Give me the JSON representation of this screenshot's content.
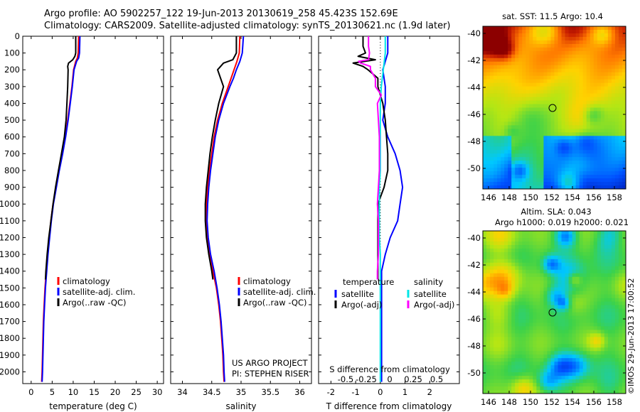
{
  "header": {
    "line1": "Argo profile: AO 5902257_122 19-Jun-2013 20130619_258 45.423S 152.69E",
    "line2": "Climatology: CARS2009. Satellite-adjusted climatology: synTS_20130621.nc (1.9d later)"
  },
  "colors": {
    "climatology": "#ff0000",
    "satellite": "#0000ff",
    "argo": "#000000",
    "salinity_satellite": "#00e6e6",
    "salinity_argo": "#ff00ff",
    "land": "#f4b89a"
  },
  "depth_ticks": [
    "0",
    "100",
    "200",
    "300",
    "400",
    "500",
    "600",
    "700",
    "800",
    "900",
    "1000",
    "1100",
    "1200",
    "1300",
    "1400",
    "1500",
    "1600",
    "1700",
    "1800",
    "1900",
    "2000"
  ],
  "chart_data": [
    {
      "type": "line",
      "id": "temperature",
      "xlabel": "temperature (deg C)",
      "ylabel": "",
      "xlim": [
        -2,
        31.5
      ],
      "ylim": [
        2070,
        0
      ],
      "xticks": [
        "0",
        "5",
        "10",
        "15",
        "20",
        "25",
        "30"
      ],
      "legend": [
        "climatology",
        "satellite-adj. clim.",
        "Argo(..raw -QC)"
      ],
      "series": [
        {
          "name": "climatology",
          "depth": [
            0,
            100,
            130,
            150,
            200,
            300,
            400,
            500,
            600,
            700,
            800,
            900,
            1000,
            1100,
            1200,
            1300,
            1400,
            1500,
            1600,
            1700,
            1800,
            1900,
            2000,
            2060
          ],
          "values": [
            11.3,
            11.2,
            11.0,
            10.6,
            10.1,
            9.7,
            9.2,
            8.7,
            8.1,
            7.4,
            6.6,
            5.9,
            5.2,
            4.7,
            4.3,
            3.9,
            3.6,
            3.3,
            3.1,
            2.9,
            2.8,
            2.7,
            2.6,
            2.5
          ]
        },
        {
          "name": "satellite-adj. clim.",
          "depth": [
            0,
            100,
            130,
            150,
            200,
            300,
            400,
            500,
            600,
            700,
            800,
            900,
            1000,
            1100,
            1200,
            1300,
            1400,
            1500,
            1600,
            1700,
            1800,
            1900,
            2000,
            2060
          ],
          "values": [
            11.6,
            11.5,
            11.3,
            10.8,
            10.2,
            9.8,
            9.3,
            8.8,
            8.2,
            7.5,
            6.7,
            6.0,
            5.3,
            4.8,
            4.4,
            4.0,
            3.7,
            3.4,
            3.2,
            3.0,
            2.9,
            2.8,
            2.7,
            2.6
          ]
        },
        {
          "name": "Argo(..raw -QC)",
          "depth": [
            0,
            60,
            100,
            120,
            140,
            160,
            180,
            200,
            300,
            400,
            500,
            600,
            700,
            800,
            900,
            1000,
            1100,
            1200,
            1300,
            1400,
            1450
          ],
          "values": [
            10.6,
            10.6,
            10.6,
            10.4,
            9.9,
            8.9,
            8.7,
            8.8,
            8.7,
            8.5,
            8.3,
            7.9,
            7.2,
            6.5,
            5.8,
            5.2,
            4.7,
            4.2,
            3.8,
            3.5,
            3.4
          ]
        }
      ]
    },
    {
      "type": "line",
      "id": "salinity",
      "xlabel": "salinity",
      "ylabel": "",
      "xlim": [
        33.8,
        36.2
      ],
      "ylim": [
        2070,
        0
      ],
      "xticks": [
        "34",
        "34.5",
        "35",
        "35.5",
        "36"
      ],
      "legend": [
        "climatology",
        "satellite-adj. clim.",
        "Argo(..raw -QC)"
      ],
      "series": [
        {
          "name": "climatology",
          "depth": [
            0,
            100,
            150,
            200,
            250,
            300,
            400,
            500,
            600,
            700,
            800,
            900,
            1000,
            1100,
            1200,
            1300,
            1400,
            1500,
            1600,
            1700,
            1800,
            1900,
            2000,
            2060
          ],
          "values": [
            34.98,
            34.97,
            34.93,
            34.88,
            34.83,
            34.78,
            34.68,
            34.6,
            34.54,
            34.5,
            34.46,
            34.43,
            34.41,
            34.4,
            34.42,
            34.46,
            34.52,
            34.58,
            34.62,
            34.65,
            34.67,
            34.69,
            34.7,
            34.71
          ]
        },
        {
          "name": "satellite-adj. clim.",
          "depth": [
            0,
            100,
            150,
            200,
            250,
            300,
            400,
            500,
            600,
            700,
            800,
            900,
            1000,
            1100,
            1200,
            1300,
            1400,
            1500,
            1600,
            1700,
            1800,
            1900,
            2000,
            2060
          ],
          "values": [
            35.04,
            35.02,
            34.98,
            34.92,
            34.87,
            34.81,
            34.7,
            34.62,
            34.56,
            34.52,
            34.48,
            34.45,
            34.43,
            34.42,
            34.44,
            34.48,
            34.54,
            34.59,
            34.63,
            34.66,
            34.68,
            34.7,
            34.71,
            34.72
          ]
        },
        {
          "name": "Argo(..raw -QC)",
          "depth": [
            0,
            60,
            100,
            140,
            160,
            200,
            300,
            400,
            500,
            600,
            700,
            800,
            900,
            1000,
            1100,
            1200,
            1300,
            1400,
            1450
          ],
          "values": [
            34.92,
            34.92,
            34.92,
            34.86,
            34.7,
            34.6,
            34.7,
            34.62,
            34.56,
            34.51,
            34.47,
            34.44,
            34.41,
            34.39,
            34.39,
            34.41,
            34.45,
            34.5,
            34.52
          ]
        }
      ],
      "annotations": [
        "US ARGO PROJECT",
        "PI: STEPHEN RISER"
      ]
    },
    {
      "type": "line",
      "id": "difference",
      "xlabel": "T difference from climatology",
      "xlabel_top": "S difference from climatology",
      "xlim": [
        -2.5,
        3.2
      ],
      "ylim": [
        2070,
        0
      ],
      "xticks": [
        "-2",
        "-1",
        "0",
        "1",
        "2"
      ],
      "xticks_top": [
        "-0.5",
        "-0.25",
        "0",
        "0.25",
        "0.5"
      ],
      "legend_temperature_title": "temperature",
      "legend_salinity_title": "salinity",
      "legend": [
        "satellite",
        "Argo(-adj)",
        "satellite",
        "Argo(-adj)"
      ],
      "series": [
        {
          "name": "satellite",
          "depth": [
            0,
            100,
            200,
            300,
            400,
            500,
            600,
            700,
            800,
            900,
            1000,
            1100,
            1200,
            1300,
            1400,
            1500,
            1600,
            1700,
            1800,
            1900,
            2000,
            2060
          ],
          "values": [
            0.3,
            0.3,
            0.1,
            0.2,
            0.2,
            0.1,
            0.3,
            0.6,
            0.8,
            0.9,
            0.8,
            0.7,
            0.4,
            0.2,
            0.05,
            0.05,
            0.05,
            0.05,
            0.05,
            0.05,
            0.05,
            0.05
          ]
        },
        {
          "name": "Argo(-adj)",
          "depth": [
            0,
            60,
            100,
            120,
            140,
            160,
            180,
            200,
            250,
            300,
            400,
            500,
            600,
            700,
            800,
            900,
            1000,
            1100,
            1200,
            1300,
            1400,
            1450
          ],
          "values": [
            -0.7,
            -0.7,
            -0.6,
            -0.9,
            -0.2,
            -1.1,
            -0.7,
            -0.5,
            -0.1,
            -0.1,
            0.1,
            0.2,
            0.25,
            0.3,
            0.3,
            0.15,
            -0.1,
            -0.1,
            -0.1,
            -0.1,
            -0.1,
            -0.1
          ]
        },
        {
          "name": "satellite",
          "depth": [
            0,
            100,
            200,
            300,
            400,
            500,
            600,
            700,
            800,
            900,
            1000,
            1100,
            1200,
            1300,
            1400,
            1500,
            1600,
            1700,
            1800,
            1900,
            2000,
            2060
          ],
          "values": [
            0.05,
            0.05,
            0.03,
            0.01,
            0,
            0,
            0,
            0,
            0,
            -0.01,
            -0.01,
            -0.01,
            -0.01,
            0,
            0,
            0,
            0,
            0,
            0,
            0,
            0,
            0
          ]
        },
        {
          "name": "Argo(-adj)",
          "depth": [
            0,
            60,
            100,
            140,
            150,
            160,
            180,
            200,
            250,
            300,
            350,
            400,
            500,
            600,
            700,
            800,
            900,
            1000,
            1100,
            1200,
            1300,
            1400,
            1450
          ],
          "values": [
            -0.12,
            -0.12,
            -0.11,
            -0.12,
            -0.22,
            -0.2,
            -0.1,
            -0.1,
            -0.05,
            -0.05,
            0.01,
            -0.03,
            -0.02,
            -0.01,
            -0.01,
            -0.01,
            -0.02,
            -0.03,
            -0.02,
            -0.02,
            -0.02,
            -0.03,
            -0.03
          ]
        }
      ]
    },
    {
      "type": "heatmap",
      "id": "sst-map",
      "title": "sat. SST: 11.5 Argo: 10.4",
      "xticks": [
        "146",
        "148",
        "150",
        "152",
        "154",
        "156",
        "158"
      ],
      "yticks": [
        "-40",
        "-42",
        "-44",
        "-46",
        "-48",
        "-50"
      ]
    },
    {
      "type": "heatmap",
      "id": "sla-map",
      "title": "Altim. SLA: 0.043",
      "subtitle": "Argo h1000: 0.019 h2000: 0.021",
      "side_label": "©IMOS 29-Jun-2013 17:00:52",
      "xticks": [
        "146",
        "148",
        "150",
        "152",
        "154",
        "156",
        "158"
      ],
      "yticks": [
        "-40",
        "-42",
        "-44",
        "-46",
        "-48",
        "-50"
      ]
    }
  ]
}
